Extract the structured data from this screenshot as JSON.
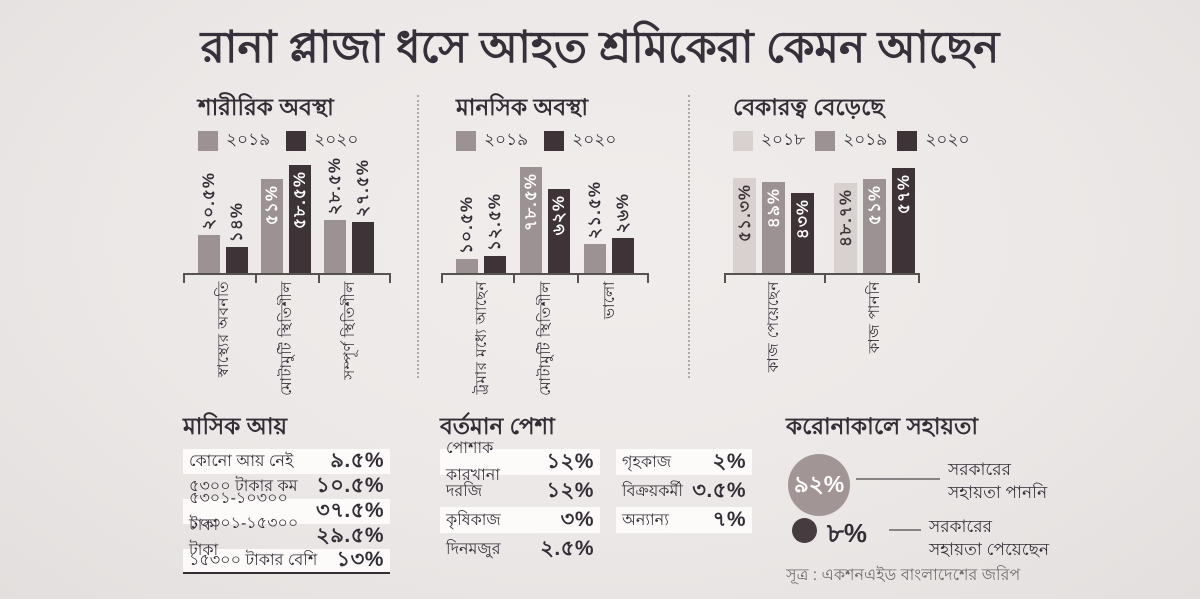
{
  "title": "রানা প্লাজা ধসে আহত শ্রমিকেরা কেমন আছেন",
  "source": "সূত্র : একশনএইড বাংলাদেশের জরিপ",
  "colors": {
    "background": "#ECE8E7",
    "bar_2018": "#D8D1D0",
    "bar_2019": "#9C9294",
    "bar_2020": "#3E3438",
    "text": "#332D36",
    "axis": "#57514F",
    "big_circle": "#A29596",
    "small_circle": "#463B3F",
    "muted_text": "#6F686A"
  },
  "chart_data": [
    {
      "type": "bar",
      "title": "শারীরিক অবস্থা",
      "unit": "%",
      "grid": false,
      "legend_position": "top",
      "ylim": [
        0,
        62
      ],
      "categories": [
        "স্বাস্থ্যের অবনতি",
        "মোটামুটি স্থিতিশীল",
        "সম্পূর্ণ স্থিতিশীল"
      ],
      "series": [
        {
          "name": "২০১৯",
          "color": "#9C9294",
          "values": [
            20.5,
            51,
            28.5
          ],
          "labels": [
            "২০.৫%",
            "৫১%",
            "২৮.৫%"
          ],
          "label_inside": [
            false,
            true,
            false
          ],
          "inside_text_color": "#FFFFFF"
        },
        {
          "name": "২০২০",
          "color": "#3E3438",
          "values": [
            14,
            58.5,
            27.5
          ],
          "labels": [
            "১৪%",
            "৫৮.৫%",
            "২৭.৫%"
          ],
          "label_inside": [
            false,
            true,
            false
          ],
          "inside_text_color": "#FFFFFF"
        }
      ]
    },
    {
      "type": "bar",
      "title": "মানসিক অবস্থা",
      "unit": "%",
      "grid": false,
      "legend_position": "top",
      "ylim": [
        0,
        85
      ],
      "categories": [
        "ট্রমার মধ্যে আছেন",
        "মোটামুটি স্থিতিশীল",
        "ভালো"
      ],
      "series": [
        {
          "name": "২০১৯",
          "color": "#9C9294",
          "values": [
            10.5,
            78.5,
            21.5
          ],
          "labels": [
            "১০.৫%",
            "৭৮.৫%",
            "২১.৫%"
          ],
          "label_inside": [
            false,
            true,
            false
          ],
          "inside_text_color": "#FFFFFF"
        },
        {
          "name": "২০২০",
          "color": "#3E3438",
          "values": [
            12.5,
            62,
            26
          ],
          "labels": [
            "১২.৫%",
            "৬২%",
            "২৬%"
          ],
          "label_inside": [
            false,
            true,
            false
          ],
          "inside_text_color": "#FFFFFF"
        }
      ]
    },
    {
      "type": "bar",
      "title": "বেকারত্ব বেড়েছে",
      "unit": "%",
      "grid": false,
      "legend_position": "top",
      "ylim": [
        0,
        60
      ],
      "categories": [
        "কাজ পেয়েছেন",
        "কাজ পাননি"
      ],
      "series": [
        {
          "name": "২০১৮",
          "color": "#D8D1D0",
          "values": [
            51.3,
            48.7
          ],
          "labels": [
            "৫১.৩%",
            "৪৮.৭%"
          ],
          "label_inside": [
            true,
            true
          ],
          "inside_text_color": "#3E3438"
        },
        {
          "name": "২০১৯",
          "color": "#9C9294",
          "values": [
            49,
            51
          ],
          "labels": [
            "৪৯%",
            "৫১%"
          ],
          "label_inside": [
            true,
            true
          ],
          "inside_text_color": "#FFFFFF"
        },
        {
          "name": "২০২০",
          "color": "#3E3438",
          "values": [
            43,
            57
          ],
          "labels": [
            "৪৩%",
            "৫৭%"
          ],
          "label_inside": [
            true,
            true
          ],
          "inside_text_color": "#FFFFFF"
        }
      ]
    },
    {
      "type": "pie",
      "title": "করোনাকালে সহায়তা",
      "slices": [
        {
          "label": "সরকারের সহায়তা পাননি",
          "value": 92,
          "display": "৯২%",
          "color": "#A29596"
        },
        {
          "label": "সরকারের সহায়তা পেয়েছেন",
          "value": 8,
          "display": "৮%",
          "color": "#463B3F"
        }
      ]
    }
  ],
  "income_table": {
    "title": "মাসিক আয়",
    "rows": [
      {
        "label": "কোনো আয় নেই",
        "value": "৯.৫%"
      },
      {
        "label": "৫৩০০ টাকার কম",
        "value": "১০.৫%"
      },
      {
        "label": "৫৩০১-১০৩০০ টাকা",
        "value": "৩৭.৫%"
      },
      {
        "label": "১০৩০১-১৫৩০০ টাকা",
        "value": "২৯.৫%"
      },
      {
        "label": "১৫৩০০ টাকার বেশি",
        "value": "১৩%"
      }
    ]
  },
  "occupation_table": {
    "title": "বর্তমান পেশা",
    "columns": [
      [
        {
          "label": "পোশাক কারখানা",
          "value": "১২%"
        },
        {
          "label": "দরজি",
          "value": "১২%"
        },
        {
          "label": "কৃষিকাজ",
          "value": "৩%"
        },
        {
          "label": "দিনমজুর",
          "value": "২.৫%"
        }
      ],
      [
        {
          "label": "গৃহকাজ",
          "value": "২%"
        },
        {
          "label": "বিক্রয়কর্মী",
          "value": "৩.৫%"
        },
        {
          "label": "অন্যান্য",
          "value": "৭%"
        }
      ]
    ]
  },
  "assistance": {
    "title": "করোনাকালে সহায়তা",
    "big": {
      "display": "৯২%",
      "label": "সরকারের\nসহায়তা পাননি"
    },
    "small": {
      "display": "৮%",
      "label": "সরকারের\nসহায়তা পেয়েছেন"
    }
  }
}
